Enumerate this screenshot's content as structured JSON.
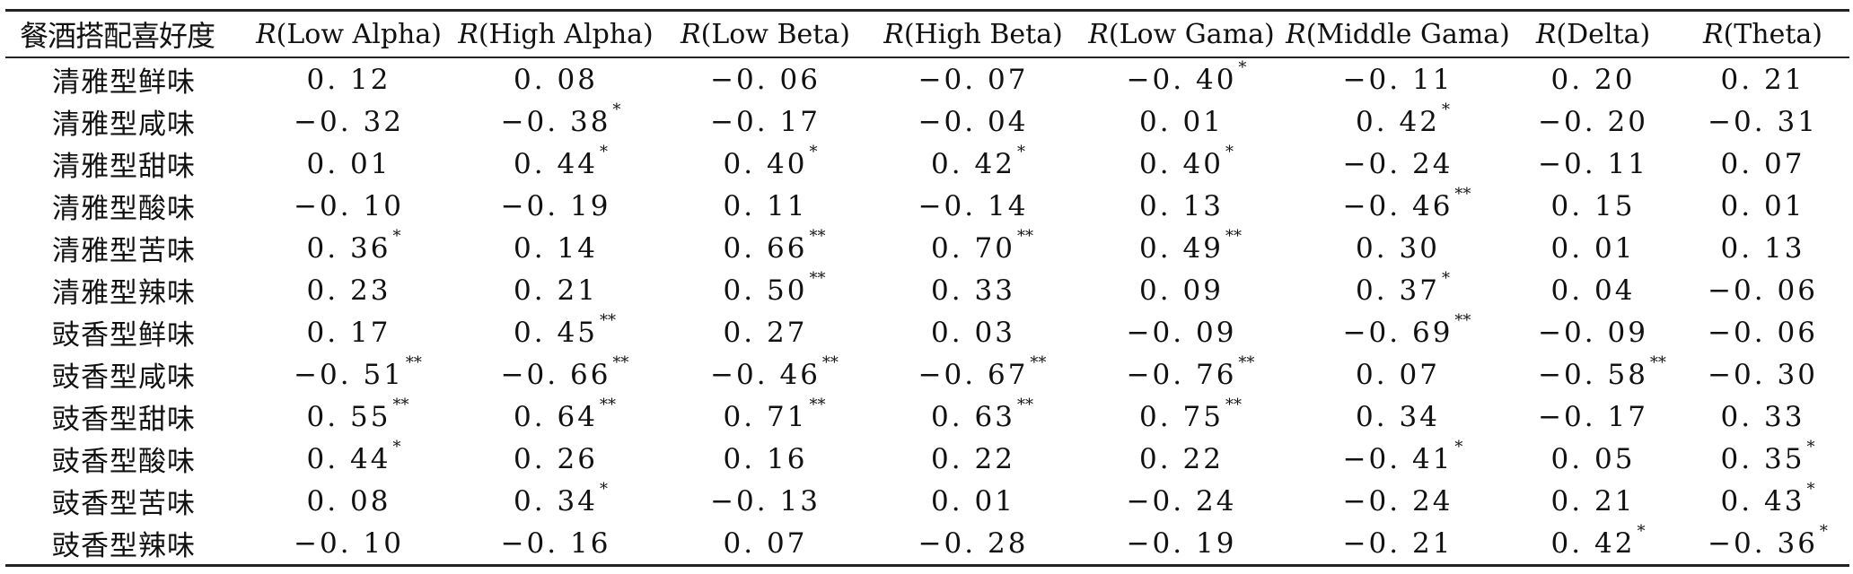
{
  "table": {
    "headers": [
      "餐酒搭配喜好度",
      {
        "r": "R",
        "label": "(Low Alpha)"
      },
      {
        "r": "R",
        "label": "(High Alpha)"
      },
      {
        "r": "R",
        "label": "(Low Beta)"
      },
      {
        "r": "R",
        "label": "(High Beta)"
      },
      {
        "r": "R",
        "label": "(Low Gama)"
      },
      {
        "r": "R",
        "label": "(Middle Gama)"
      },
      {
        "r": "R",
        "label": "(Delta)"
      },
      {
        "r": "R",
        "label": "(Theta)"
      }
    ],
    "rows": [
      {
        "name": "清雅型鲜味",
        "cells": [
          {
            "v": "0. 12",
            "s": ""
          },
          {
            "v": "0. 08",
            "s": ""
          },
          {
            "v": "−0. 06",
            "s": ""
          },
          {
            "v": "−0. 07",
            "s": ""
          },
          {
            "v": "−0. 40",
            "s": "*"
          },
          {
            "v": "−0. 11",
            "s": ""
          },
          {
            "v": "0. 20",
            "s": ""
          },
          {
            "v": "0. 21",
            "s": ""
          }
        ]
      },
      {
        "name": "清雅型咸味",
        "cells": [
          {
            "v": "−0. 32",
            "s": ""
          },
          {
            "v": "−0. 38",
            "s": "*"
          },
          {
            "v": "−0. 17",
            "s": ""
          },
          {
            "v": "−0. 04",
            "s": ""
          },
          {
            "v": "0. 01",
            "s": ""
          },
          {
            "v": "0. 42",
            "s": "*"
          },
          {
            "v": "−0. 20",
            "s": ""
          },
          {
            "v": "−0. 31",
            "s": ""
          }
        ]
      },
      {
        "name": "清雅型甜味",
        "cells": [
          {
            "v": "0. 01",
            "s": ""
          },
          {
            "v": "0. 44",
            "s": "*"
          },
          {
            "v": "0. 40",
            "s": "*"
          },
          {
            "v": "0. 42",
            "s": "*"
          },
          {
            "v": "0. 40",
            "s": "*"
          },
          {
            "v": "−0. 24",
            "s": ""
          },
          {
            "v": "−0. 11",
            "s": ""
          },
          {
            "v": "0. 07",
            "s": ""
          }
        ]
      },
      {
        "name": "清雅型酸味",
        "cells": [
          {
            "v": "−0. 10",
            "s": ""
          },
          {
            "v": "−0. 19",
            "s": ""
          },
          {
            "v": "0. 11",
            "s": ""
          },
          {
            "v": "−0. 14",
            "s": ""
          },
          {
            "v": "0. 13",
            "s": ""
          },
          {
            "v": "−0. 46",
            "s": "**"
          },
          {
            "v": "0. 15",
            "s": ""
          },
          {
            "v": "0. 01",
            "s": ""
          }
        ]
      },
      {
        "name": "清雅型苦味",
        "cells": [
          {
            "v": "0. 36",
            "s": "*"
          },
          {
            "v": "0. 14",
            "s": ""
          },
          {
            "v": "0. 66",
            "s": "**"
          },
          {
            "v": "0. 70",
            "s": "**"
          },
          {
            "v": "0. 49",
            "s": "**"
          },
          {
            "v": "0. 30",
            "s": ""
          },
          {
            "v": "0. 01",
            "s": ""
          },
          {
            "v": "0. 13",
            "s": ""
          }
        ]
      },
      {
        "name": "清雅型辣味",
        "cells": [
          {
            "v": "0. 23",
            "s": ""
          },
          {
            "v": "0. 21",
            "s": ""
          },
          {
            "v": "0. 50",
            "s": "**"
          },
          {
            "v": "0. 33",
            "s": ""
          },
          {
            "v": "0. 09",
            "s": ""
          },
          {
            "v": "0. 37",
            "s": "*"
          },
          {
            "v": "0. 04",
            "s": ""
          },
          {
            "v": "−0. 06",
            "s": ""
          }
        ]
      },
      {
        "name": "豉香型鲜味",
        "cells": [
          {
            "v": "0. 17",
            "s": ""
          },
          {
            "v": "0. 45",
            "s": "**"
          },
          {
            "v": "0. 27",
            "s": ""
          },
          {
            "v": "0. 03",
            "s": ""
          },
          {
            "v": "−0. 09",
            "s": ""
          },
          {
            "v": "−0. 69",
            "s": "**"
          },
          {
            "v": "−0. 09",
            "s": ""
          },
          {
            "v": "−0. 06",
            "s": ""
          }
        ]
      },
      {
        "name": "豉香型咸味",
        "cells": [
          {
            "v": "−0. 51",
            "s": "**"
          },
          {
            "v": "−0. 66",
            "s": "**"
          },
          {
            "v": "−0. 46",
            "s": "**"
          },
          {
            "v": "−0. 67",
            "s": "**"
          },
          {
            "v": "−0. 76",
            "s": "**"
          },
          {
            "v": "0. 07",
            "s": ""
          },
          {
            "v": "−0. 58",
            "s": "**"
          },
          {
            "v": "−0. 30",
            "s": ""
          }
        ]
      },
      {
        "name": "豉香型甜味",
        "cells": [
          {
            "v": "0. 55",
            "s": "**"
          },
          {
            "v": "0. 64",
            "s": "**"
          },
          {
            "v": "0. 71",
            "s": "**"
          },
          {
            "v": "0. 63",
            "s": "**"
          },
          {
            "v": "0. 75",
            "s": "**"
          },
          {
            "v": "0. 34",
            "s": ""
          },
          {
            "v": "−0. 17",
            "s": ""
          },
          {
            "v": "0. 33",
            "s": ""
          }
        ]
      },
      {
        "name": "豉香型酸味",
        "cells": [
          {
            "v": "0. 44",
            "s": "*"
          },
          {
            "v": "0. 26",
            "s": ""
          },
          {
            "v": "0. 16",
            "s": ""
          },
          {
            "v": "0. 22",
            "s": ""
          },
          {
            "v": "0. 22",
            "s": ""
          },
          {
            "v": "−0. 41",
            "s": "*"
          },
          {
            "v": "0. 05",
            "s": ""
          },
          {
            "v": "0. 35",
            "s": "*"
          }
        ]
      },
      {
        "name": "豉香型苦味",
        "cells": [
          {
            "v": "0. 08",
            "s": ""
          },
          {
            "v": "0. 34",
            "s": "*"
          },
          {
            "v": "−0. 13",
            "s": ""
          },
          {
            "v": "0. 01",
            "s": ""
          },
          {
            "v": "−0. 24",
            "s": ""
          },
          {
            "v": "−0. 24",
            "s": ""
          },
          {
            "v": "0. 21",
            "s": ""
          },
          {
            "v": "0. 43",
            "s": "*"
          }
        ]
      },
      {
        "name": "豉香型辣味",
        "cells": [
          {
            "v": "−0. 10",
            "s": ""
          },
          {
            "v": "−0. 16",
            "s": ""
          },
          {
            "v": "0. 07",
            "s": ""
          },
          {
            "v": "−0. 28",
            "s": ""
          },
          {
            "v": "−0. 19",
            "s": ""
          },
          {
            "v": "−0. 21",
            "s": ""
          },
          {
            "v": "0. 42",
            "s": "*"
          },
          {
            "v": "−0. 36",
            "s": "*"
          }
        ]
      }
    ]
  }
}
